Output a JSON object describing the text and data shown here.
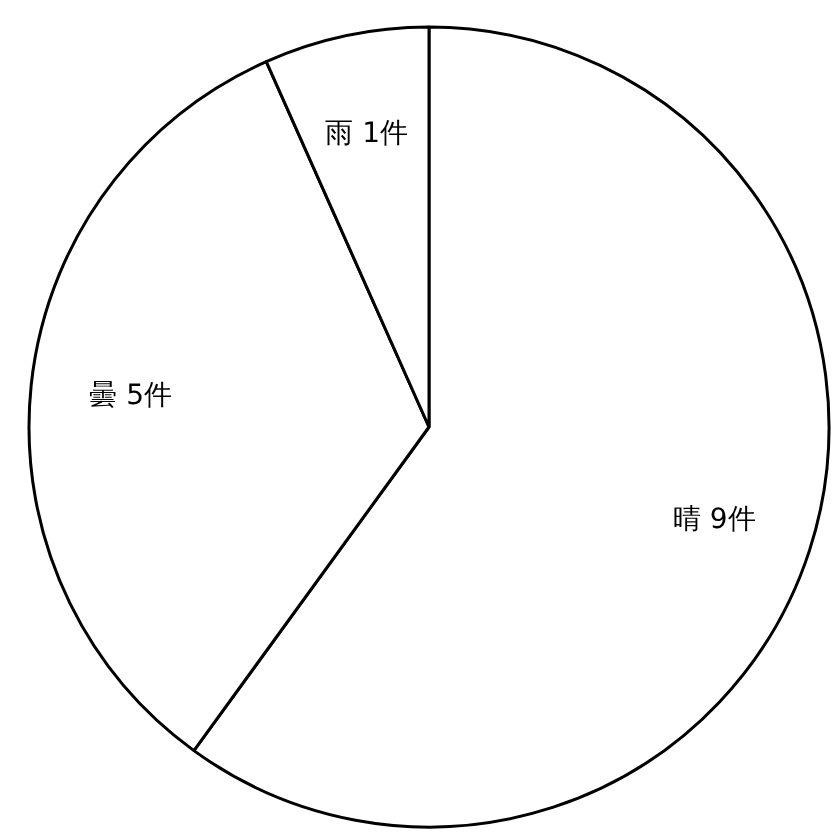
{
  "chart_data": {
    "type": "pie",
    "categories": [
      "晴",
      "曇",
      "雨"
    ],
    "values": [
      9,
      5,
      1
    ],
    "value_labels": [
      "9件",
      "5件",
      "1件"
    ],
    "colors": [
      "#ffffff",
      "#ffffff",
      "#ffffff"
    ]
  }
}
